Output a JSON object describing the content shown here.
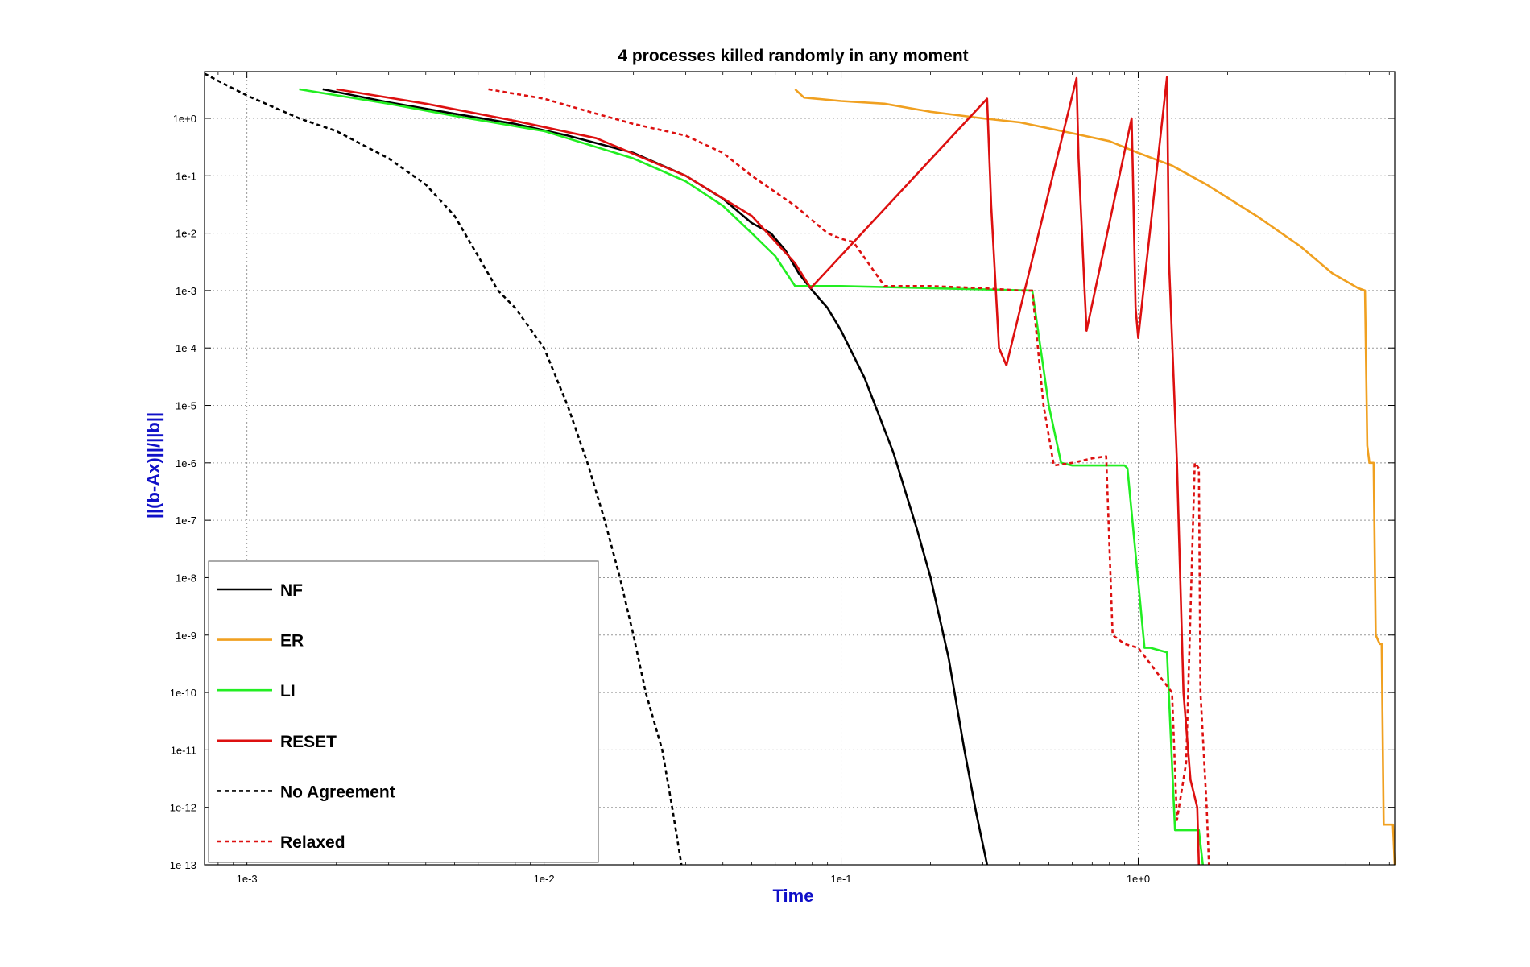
{
  "chart_data": {
    "type": "line",
    "title": "4 processes killed randomly in any moment",
    "xlabel": "Time",
    "ylabel": "||(b-Ax)||/||b||",
    "x_scale": "log",
    "y_scale": "log",
    "xlim": [
      0.00072,
      7.3
    ],
    "ylim": [
      1e-13,
      6.5
    ],
    "grid": true,
    "legend_position": "bottom-left",
    "x_ticks": [
      {
        "value": 0.001,
        "label": "1e-3"
      },
      {
        "value": 0.01,
        "label": "1e-2"
      },
      {
        "value": 0.1,
        "label": "1e-1"
      },
      {
        "value": 1,
        "label": "1e+0"
      }
    ],
    "y_ticks": [
      {
        "value": 1,
        "label": "1e+0"
      },
      {
        "value": 0.1,
        "label": "1e-1"
      },
      {
        "value": 0.01,
        "label": "1e-2"
      },
      {
        "value": 0.001,
        "label": "1e-3"
      },
      {
        "value": 0.0001,
        "label": "1e-4"
      },
      {
        "value": 1e-05,
        "label": "1e-5"
      },
      {
        "value": 1e-06,
        "label": "1e-6"
      },
      {
        "value": 1e-07,
        "label": "1e-7"
      },
      {
        "value": 1e-08,
        "label": "1e-8"
      },
      {
        "value": 1e-09,
        "label": "1e-9"
      },
      {
        "value": 1e-10,
        "label": "1e-10"
      },
      {
        "value": 1e-11,
        "label": "1e-11"
      },
      {
        "value": 1e-12,
        "label": "1e-12"
      },
      {
        "value": 1e-13,
        "label": "1e-13"
      }
    ],
    "series": [
      {
        "name": "NF",
        "color": "#000000",
        "dash": "solid",
        "points": [
          [
            0.0018,
            3.2
          ],
          [
            0.003,
            1.9
          ],
          [
            0.005,
            1.2
          ],
          [
            0.008,
            0.8
          ],
          [
            0.012,
            0.5
          ],
          [
            0.02,
            0.25
          ],
          [
            0.03,
            0.1
          ],
          [
            0.04,
            0.04
          ],
          [
            0.05,
            0.015
          ],
          [
            0.058,
            0.01
          ],
          [
            0.065,
            0.005
          ],
          [
            0.072,
            0.002
          ],
          [
            0.08,
            0.001
          ],
          [
            0.09,
            0.0005
          ],
          [
            0.1,
            0.0002
          ],
          [
            0.12,
            3e-05
          ],
          [
            0.15,
            1.5e-06
          ],
          [
            0.18,
            7e-08
          ],
          [
            0.2,
            1e-08
          ],
          [
            0.23,
            4e-10
          ],
          [
            0.26,
            1e-11
          ],
          [
            0.285,
            8e-13
          ],
          [
            0.31,
            1e-13
          ]
        ]
      },
      {
        "name": "ER",
        "color": "#f0a020",
        "dash": "solid",
        "points": [
          [
            0.07,
            3.2
          ],
          [
            0.075,
            2.3
          ],
          [
            0.1,
            2.0
          ],
          [
            0.14,
            1.8
          ],
          [
            0.2,
            1.3
          ],
          [
            0.3,
            1.0
          ],
          [
            0.4,
            0.85
          ],
          [
            0.6,
            0.55
          ],
          [
            0.8,
            0.4
          ],
          [
            1.0,
            0.25
          ],
          [
            1.3,
            0.15
          ],
          [
            1.7,
            0.07
          ],
          [
            2.5,
            0.02
          ],
          [
            3.5,
            0.006
          ],
          [
            4.5,
            0.002
          ],
          [
            5.5,
            0.0011
          ],
          [
            5.8,
            0.001
          ],
          [
            5.9,
            2e-06
          ],
          [
            6.0,
            1e-06
          ],
          [
            6.2,
            1e-06
          ],
          [
            6.3,
            1e-09
          ],
          [
            6.5,
            7e-10
          ],
          [
            6.6,
            7e-10
          ],
          [
            6.7,
            5e-13
          ],
          [
            7.2,
            5e-13
          ],
          [
            7.3,
            1e-13
          ]
        ]
      },
      {
        "name": "LI",
        "color": "#22ee22",
        "dash": "solid",
        "points": [
          [
            0.0015,
            3.2
          ],
          [
            0.003,
            1.8
          ],
          [
            0.005,
            1.1
          ],
          [
            0.01,
            0.6
          ],
          [
            0.02,
            0.2
          ],
          [
            0.03,
            0.08
          ],
          [
            0.04,
            0.03
          ],
          [
            0.05,
            0.01
          ],
          [
            0.06,
            0.004
          ],
          [
            0.07,
            0.0012
          ],
          [
            0.1,
            0.0012
          ],
          [
            0.2,
            0.0011
          ],
          [
            0.3,
            0.00105
          ],
          [
            0.44,
            0.001
          ],
          [
            0.5,
            1e-05
          ],
          [
            0.55,
            1e-06
          ],
          [
            0.6,
            9e-07
          ],
          [
            0.9,
            9e-07
          ],
          [
            0.92,
            8e-07
          ],
          [
            1.05,
            6e-10
          ],
          [
            1.1,
            6e-10
          ],
          [
            1.25,
            5e-10
          ],
          [
            1.33,
            4e-13
          ],
          [
            1.5,
            4e-13
          ],
          [
            1.6,
            4e-13
          ],
          [
            1.65,
            1e-13
          ]
        ]
      },
      {
        "name": "RESET",
        "color": "#dd1010",
        "dash": "solid",
        "points": [
          [
            0.002,
            3.2
          ],
          [
            0.004,
            1.8
          ],
          [
            0.008,
            0.9
          ],
          [
            0.015,
            0.45
          ],
          [
            0.03,
            0.1
          ],
          [
            0.05,
            0.02
          ],
          [
            0.07,
            0.003
          ],
          [
            0.079,
            0.0011
          ],
          [
            0.31,
            2.2
          ],
          [
            0.32,
            0.03
          ],
          [
            0.34,
            0.0001
          ],
          [
            0.36,
            5e-05
          ],
          [
            0.62,
            5
          ],
          [
            0.63,
            0.2
          ],
          [
            0.66,
            0.001
          ],
          [
            0.67,
            0.0002
          ],
          [
            0.95,
            1.0
          ],
          [
            0.96,
            0.1
          ],
          [
            0.98,
            0.0005
          ],
          [
            1.0,
            0.00015
          ],
          [
            1.25,
            5.2
          ],
          [
            1.27,
            0.003
          ],
          [
            1.35,
            1e-06
          ],
          [
            1.42,
            1e-10
          ],
          [
            1.5,
            3e-12
          ],
          [
            1.58,
            1e-12
          ],
          [
            1.6,
            1e-13
          ]
        ]
      },
      {
        "name": "No Agreement",
        "color": "#000000",
        "dash": "dashed",
        "points": [
          [
            0.00072,
            6
          ],
          [
            0.0008,
            4.5
          ],
          [
            0.001,
            2.5
          ],
          [
            0.0015,
            1.0
          ],
          [
            0.002,
            0.6
          ],
          [
            0.003,
            0.2
          ],
          [
            0.004,
            0.07
          ],
          [
            0.005,
            0.02
          ],
          [
            0.006,
            0.004
          ],
          [
            0.007,
            0.001
          ],
          [
            0.008,
            0.0005
          ],
          [
            0.01,
            0.0001
          ],
          [
            0.012,
            1e-05
          ],
          [
            0.014,
            1e-06
          ],
          [
            0.016,
            1e-07
          ],
          [
            0.018,
            1e-08
          ],
          [
            0.02,
            1e-09
          ],
          [
            0.022,
            1e-10
          ],
          [
            0.025,
            1e-11
          ],
          [
            0.027,
            1e-12
          ],
          [
            0.029,
            1e-13
          ]
        ]
      },
      {
        "name": "Relaxed",
        "color": "#dd1010",
        "dash": "dashed",
        "points": [
          [
            0.0065,
            3.2
          ],
          [
            0.01,
            2.2
          ],
          [
            0.015,
            1.2
          ],
          [
            0.02,
            0.8
          ],
          [
            0.03,
            0.5
          ],
          [
            0.04,
            0.25
          ],
          [
            0.05,
            0.1
          ],
          [
            0.07,
            0.03
          ],
          [
            0.09,
            0.01
          ],
          [
            0.1,
            0.008
          ],
          [
            0.11,
            0.007
          ],
          [
            0.14,
            0.0012
          ],
          [
            0.2,
            0.0012
          ],
          [
            0.3,
            0.0011
          ],
          [
            0.4,
            0.001
          ],
          [
            0.44,
            0.001
          ],
          [
            0.48,
            1e-05
          ],
          [
            0.52,
            9e-07
          ],
          [
            0.6,
            1e-06
          ],
          [
            0.7,
            1.2e-06
          ],
          [
            0.78,
            1.3e-06
          ],
          [
            0.82,
            1e-09
          ],
          [
            0.9,
            7e-10
          ],
          [
            1.0,
            6e-10
          ],
          [
            1.3,
            1e-10
          ],
          [
            1.35,
            6e-13
          ],
          [
            1.45,
            6e-12
          ],
          [
            1.55,
            1e-06
          ],
          [
            1.6,
            8e-07
          ],
          [
            1.62,
            1e-10
          ],
          [
            1.7,
            1e-12
          ],
          [
            1.73,
            1e-13
          ]
        ]
      }
    ]
  }
}
